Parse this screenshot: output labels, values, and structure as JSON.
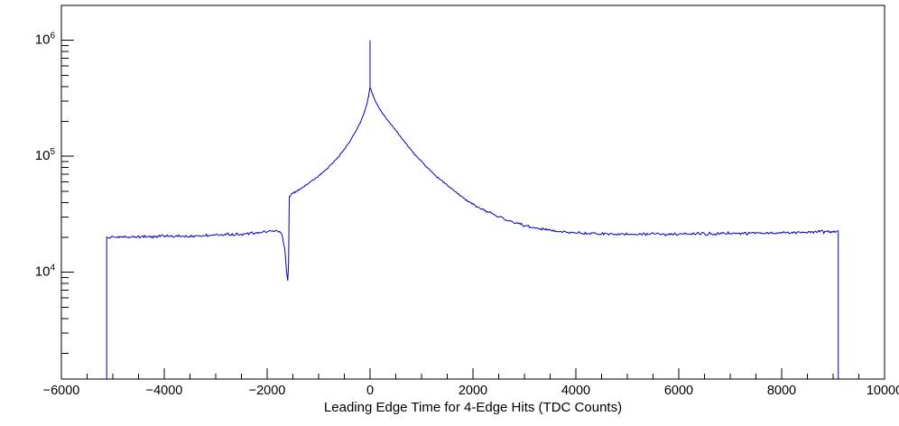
{
  "chart_data": {
    "type": "line",
    "subtype": "histogram-outline-log-y",
    "title": "",
    "xlabel": "Leading Edge Time for 4-Edge Hits (TDC Counts)",
    "ylabel": "",
    "grid": false,
    "legend": false,
    "x_axis": {
      "min": -6000,
      "max": 10000,
      "minor_step": 500,
      "major_ticks": [
        {
          "value": -6000,
          "label": "−6000"
        },
        {
          "value": -4000,
          "label": "−4000"
        },
        {
          "value": -2000,
          "label": "−2000"
        },
        {
          "value": 0,
          "label": "0"
        },
        {
          "value": 2000,
          "label": "2000"
        },
        {
          "value": 4000,
          "label": "4000"
        },
        {
          "value": 6000,
          "label": "6000"
        },
        {
          "value": 8000,
          "label": "8000"
        },
        {
          "value": 10000,
          "label": "10000"
        }
      ]
    },
    "y_axis": {
      "scale": "log",
      "min": 1200,
      "max": 2000000,
      "major_ticks": [
        {
          "value": 10000,
          "mantissa": "10",
          "exponent": "4"
        },
        {
          "value": 100000,
          "mantissa": "10",
          "exponent": "5"
        },
        {
          "value": 1000000,
          "mantissa": "10",
          "exponent": "6"
        }
      ]
    },
    "colors": {
      "line": "#0000bb",
      "frame": "#000000",
      "background": "#ffffff",
      "text": "#000000"
    },
    "spike": {
      "x": 0,
      "y_from": 395000,
      "y_to": 1000000
    },
    "render": {
      "sample_step": 20,
      "poisson_noise_k": 6,
      "noise_min_y": 3000
    },
    "series": [
      {
        "name": "leading-edge-time",
        "points": [
          [
            -5120,
            1200
          ],
          [
            -5120,
            20000
          ],
          [
            -4800,
            20200
          ],
          [
            -4400,
            20300
          ],
          [
            -4000,
            20500
          ],
          [
            -3600,
            20600
          ],
          [
            -3200,
            20800
          ],
          [
            -2800,
            21100
          ],
          [
            -2400,
            21500
          ],
          [
            -2100,
            22000
          ],
          [
            -1950,
            22400
          ],
          [
            -1850,
            22700
          ],
          [
            -1780,
            22600
          ],
          [
            -1720,
            21800
          ],
          [
            -1660,
            16000
          ],
          [
            -1625,
            10500
          ],
          [
            -1600,
            8500
          ],
          [
            -1585,
            12000
          ],
          [
            -1570,
            45000
          ],
          [
            -1500,
            48000
          ],
          [
            -1400,
            51000
          ],
          [
            -1300,
            54500
          ],
          [
            -1200,
            58500
          ],
          [
            -1100,
            63000
          ],
          [
            -1000,
            68000
          ],
          [
            -900,
            74000
          ],
          [
            -800,
            81000
          ],
          [
            -700,
            90000
          ],
          [
            -600,
            101000
          ],
          [
            -500,
            115000
          ],
          [
            -400,
            133000
          ],
          [
            -300,
            158000
          ],
          [
            -200,
            192000
          ],
          [
            -150,
            215000
          ],
          [
            -100,
            248000
          ],
          [
            -60,
            285000
          ],
          [
            -30,
            330000
          ],
          [
            0,
            395000
          ],
          [
            30,
            360000
          ],
          [
            60,
            333000
          ],
          [
            100,
            300000
          ],
          [
            150,
            272000
          ],
          [
            200,
            250000
          ],
          [
            300,
            216000
          ],
          [
            400,
            190000
          ],
          [
            500,
            167000
          ],
          [
            600,
            146000
          ],
          [
            700,
            128000
          ],
          [
            800,
            113000
          ],
          [
            900,
            100000
          ],
          [
            1000,
            90000
          ],
          [
            1100,
            81000
          ],
          [
            1200,
            73500
          ],
          [
            1300,
            67000
          ],
          [
            1400,
            61000
          ],
          [
            1500,
            56000
          ],
          [
            1600,
            51500
          ],
          [
            1700,
            47500
          ],
          [
            1800,
            44000
          ],
          [
            1900,
            41000
          ],
          [
            2000,
            38500
          ],
          [
            2200,
            34500
          ],
          [
            2400,
            31500
          ],
          [
            2600,
            29000
          ],
          [
            2800,
            27000
          ],
          [
            3000,
            25400
          ],
          [
            3200,
            24200
          ],
          [
            3400,
            23300
          ],
          [
            3600,
            22600
          ],
          [
            3800,
            22100
          ],
          [
            4000,
            21800
          ],
          [
            4400,
            21500
          ],
          [
            4800,
            21400
          ],
          [
            5200,
            21350
          ],
          [
            5600,
            21350
          ],
          [
            6000,
            21400
          ],
          [
            6500,
            21500
          ],
          [
            7000,
            21600
          ],
          [
            7500,
            21750
          ],
          [
            8000,
            21900
          ],
          [
            8500,
            22100
          ],
          [
            9000,
            22500
          ],
          [
            9100,
            22600
          ],
          [
            9100,
            1200
          ]
        ]
      }
    ]
  }
}
